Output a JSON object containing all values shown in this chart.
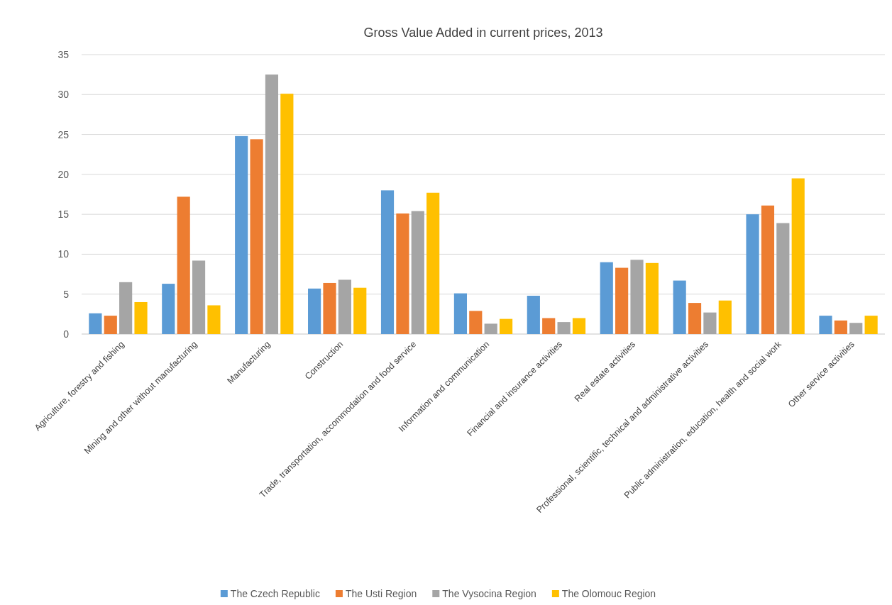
{
  "chart_data": {
    "type": "bar",
    "title": "Gross Value Added in current prices, 2013",
    "categories": [
      "Agriculture, forestry and fishing",
      "Mining and other without manufacturing",
      "Manufacturing",
      "Construction",
      "Trade, transportation, accommodation and food service",
      "Information and communication",
      "Financial and insurance activities",
      "Real estate activities",
      "Professional, scientific, technical and administrative activities",
      "Public administration, education, health and social work",
      "Other service activities"
    ],
    "series": [
      {
        "name": "The Czech Republic",
        "color": "#5b9bd5",
        "values": [
          2.6,
          6.3,
          24.8,
          5.7,
          18.0,
          5.1,
          4.8,
          9.0,
          6.7,
          15.0,
          2.3
        ]
      },
      {
        "name": "The Usti Region",
        "color": "#ed7d31",
        "values": [
          2.3,
          17.2,
          24.4,
          6.4,
          15.1,
          2.9,
          2.0,
          8.3,
          3.9,
          16.1,
          1.7
        ]
      },
      {
        "name": "The Vysocina Region",
        "color": "#a5a5a5",
        "values": [
          6.5,
          9.2,
          32.5,
          6.8,
          15.4,
          1.3,
          1.5,
          9.3,
          2.7,
          13.9,
          1.4
        ]
      },
      {
        "name": "The Olomouc Region",
        "color": "#ffc000",
        "values": [
          4.0,
          3.6,
          30.1,
          5.8,
          17.7,
          1.9,
          2.0,
          8.9,
          4.2,
          19.5,
          2.3
        ]
      }
    ],
    "ylim": [
      0,
      35
    ],
    "yticks": [
      0,
      5,
      10,
      15,
      20,
      25,
      30,
      35
    ],
    "grid": "y",
    "legend": "bottom"
  }
}
